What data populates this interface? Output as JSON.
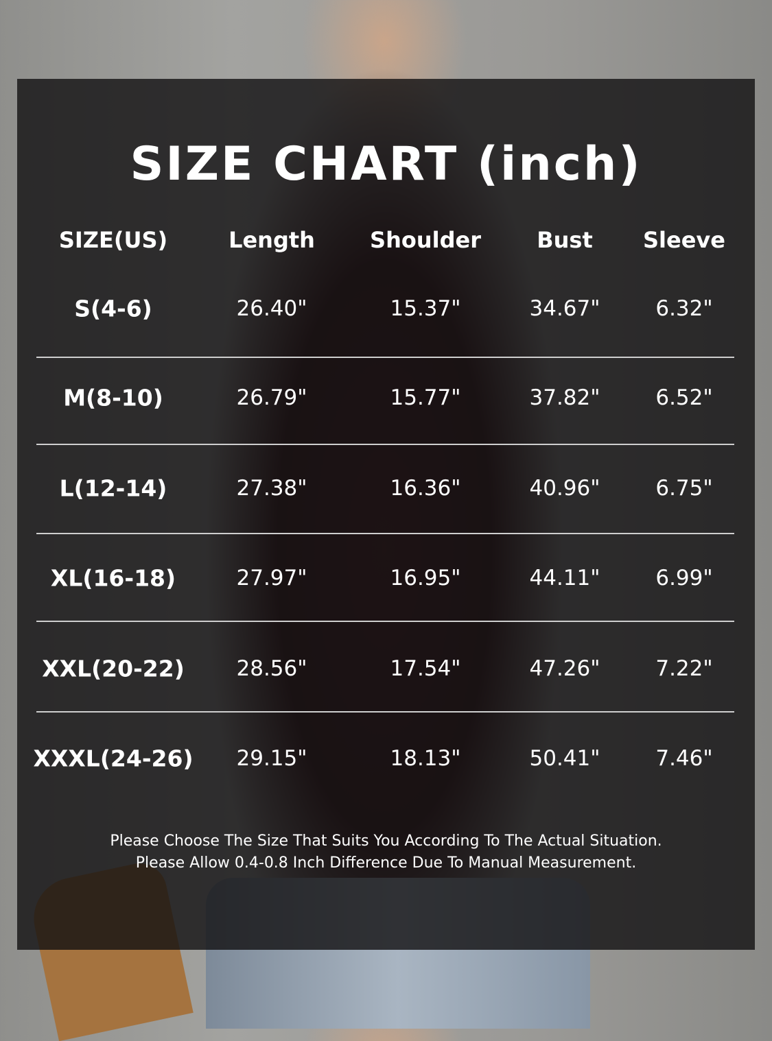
{
  "title": "SIZE CHART (inch)",
  "table": {
    "headers": [
      "SIZE(US)",
      "Length",
      "Shoulder",
      "Bust",
      "Sleeve"
    ],
    "rows": [
      [
        "S(4-6)",
        "26.40\"",
        "15.37\"",
        "34.67\"",
        "6.32\""
      ],
      [
        "M(8-10)",
        "26.79\"",
        "15.77\"",
        "37.82\"",
        "6.52\""
      ],
      [
        "L(12-14)",
        "27.38\"",
        "16.36\"",
        "40.96\"",
        "6.75\""
      ],
      [
        "XL(16-18)",
        "27.97\"",
        "16.95\"",
        "44.11\"",
        "6.99\""
      ],
      [
        "XXL(20-22)",
        "28.56\"",
        "17.54\"",
        "47.26\"",
        "7.22\""
      ],
      [
        "XXXL(24-26)",
        "29.15\"",
        "18.13\"",
        "50.41\"",
        "7.46\""
      ]
    ]
  },
  "notes": [
    "Please Choose The Size That Suits You According To The Actual Situation.",
    "Please Allow 0.4-0.8 Inch Difference Due To Manual Measurement."
  ],
  "colors": {
    "panel": "#121011",
    "text": "#ffffff",
    "shirt": "#4a1e22"
  }
}
